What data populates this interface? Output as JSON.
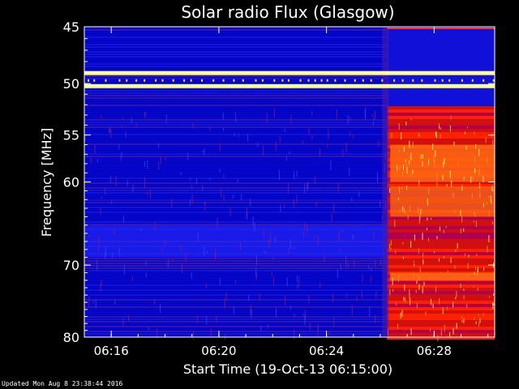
{
  "chart_data": {
    "type": "heatmap",
    "title": "Solar radio Flux (Glasgow)",
    "xlabel": "Start Time (19-Oct-13 06:15:00)",
    "ylabel": "Frequency [MHz]",
    "x_range_minutes_after_06_00": [
      15.0,
      30.25
    ],
    "y_range_mhz": [
      45,
      80
    ],
    "y_scale": "log",
    "x_ticks": [
      "06:16",
      "06:20",
      "06:24",
      "06:28"
    ],
    "x_tick_minutes_after_06_00": [
      16,
      20,
      24,
      28
    ],
    "y_ticks": [
      45,
      50,
      55,
      60,
      70,
      80
    ],
    "y_tick_labels": [
      "45",
      "50",
      "55",
      "60",
      "70",
      "80"
    ],
    "burst_onset_minutes_after_06_00": 26.25,
    "bright_bands_mhz": [
      49.0,
      50.2
    ],
    "colors": {
      "background": "#0000c8",
      "low": "#1a1aff",
      "mid": "#b00050",
      "high": "#ff2000",
      "peak": "#ffff60"
    }
  },
  "footer": {
    "updated": "Updated Mon Aug  8 23:38:44 2016"
  }
}
